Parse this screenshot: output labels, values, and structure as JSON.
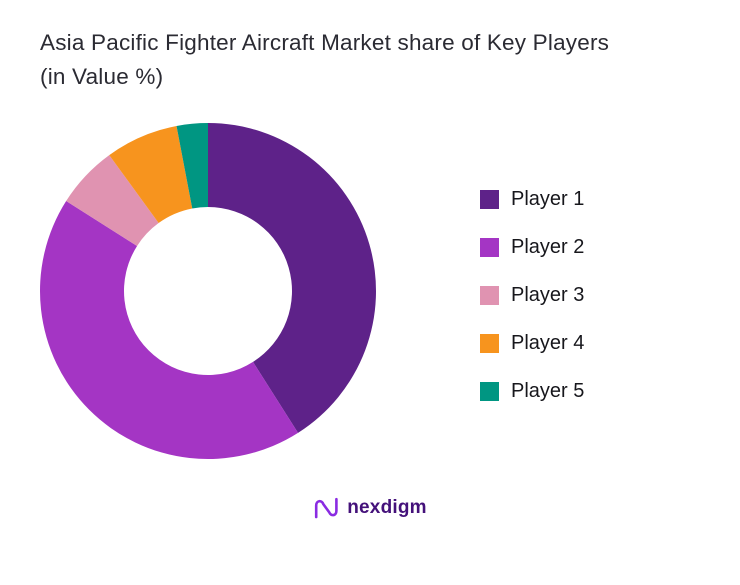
{
  "chart_data": {
    "type": "pie",
    "variant": "donut",
    "title": "Asia Pacific Fighter Aircraft Market share of Key Players (in Value %)",
    "categories": [
      "Player 1",
      "Player 2",
      "Player 3",
      "Player 4",
      "Player 5"
    ],
    "values": [
      41,
      43,
      6,
      7,
      3
    ],
    "unit": "percent of market value",
    "colors": [
      "#5e2289",
      "#a435c4",
      "#e093b1",
      "#f7941e",
      "#009682"
    ],
    "legend_position": "right",
    "start_angle_deg": 0,
    "direction": "clockwise",
    "inner_radius_ratio": 0.5,
    "hole_color": "#ffffff"
  },
  "footer": {
    "brand": "nexdigm",
    "brand_color": "#44117a",
    "icon_color": "#8a2be2"
  }
}
